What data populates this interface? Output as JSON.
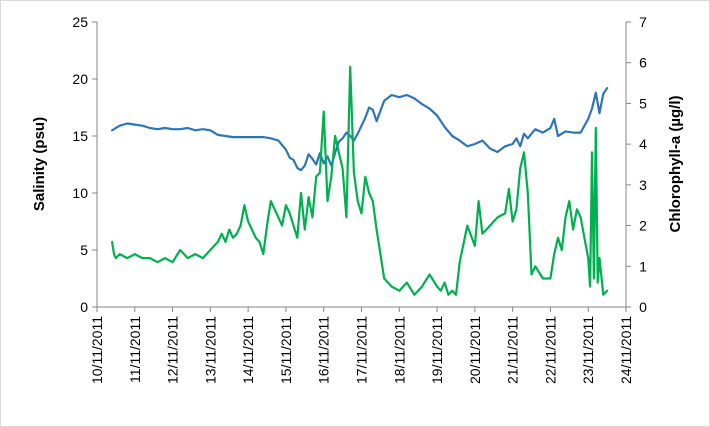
{
  "chart_data": {
    "type": "line",
    "title": "",
    "xlabel": "",
    "ylabel_left": "Salinity (psu)",
    "ylabel_right": "Chlorophyll-a (µg/l)",
    "ylim_left": [
      0,
      25
    ],
    "yticks_left": [
      0,
      5,
      10,
      15,
      20,
      25
    ],
    "ylim_right": [
      0,
      7
    ],
    "yticks_right": [
      0,
      1,
      2,
      3,
      4,
      5,
      6,
      7
    ],
    "xlim": [
      0,
      14
    ],
    "x_tick_labels": [
      "10/11/2011",
      "11/11/2011",
      "12/11/2011",
      "13/11/2011",
      "14/11/2011",
      "15/11/2011",
      "16/11/2011",
      "17/11/2011",
      "18/11/2011",
      "19/11/2011",
      "20/11/2011",
      "21/11/2011",
      "22/11/2011",
      "23/11/2011",
      "24/11/2011"
    ],
    "grid": false,
    "legend": "none",
    "x_unit": "days after 10/11/2011",
    "series": [
      {
        "color": "#2e75b6",
        "axis": "left",
        "x": [
          0.4,
          0.6,
          0.8,
          1.0,
          1.2,
          1.4,
          1.6,
          1.8,
          2.0,
          2.2,
          2.4,
          2.6,
          2.8,
          3.0,
          3.2,
          3.4,
          3.6,
          3.8,
          4.0,
          4.2,
          4.4,
          4.6,
          4.8,
          5.0,
          5.1,
          5.2,
          5.3,
          5.4,
          5.5,
          5.6,
          5.7,
          5.8,
          5.9,
          6.0,
          6.1,
          6.2,
          6.3,
          6.4,
          6.5,
          6.6,
          6.7,
          6.8,
          6.9,
          7.0,
          7.1,
          7.2,
          7.3,
          7.4,
          7.5,
          7.6,
          7.8,
          8.0,
          8.2,
          8.4,
          8.6,
          8.8,
          9.0,
          9.2,
          9.4,
          9.6,
          9.8,
          10.0,
          10.2,
          10.4,
          10.6,
          10.8,
          11.0,
          11.1,
          11.2,
          11.3,
          11.4,
          11.5,
          11.6,
          11.8,
          12.0,
          12.1,
          12.2,
          12.4,
          12.6,
          12.8,
          13.0,
          13.1,
          13.2,
          13.3,
          13.4,
          13.5
        ],
        "y": [
          15.5,
          15.9,
          16.1,
          16.0,
          15.9,
          15.7,
          15.6,
          15.7,
          15.6,
          15.6,
          15.7,
          15.5,
          15.6,
          15.5,
          15.1,
          15.0,
          14.9,
          14.9,
          14.9,
          14.9,
          14.9,
          14.8,
          14.6,
          13.8,
          13.1,
          12.9,
          12.2,
          12.0,
          12.4,
          13.4,
          13.0,
          12.5,
          13.5,
          12.6,
          13.2,
          12.4,
          13.5,
          14.5,
          14.8,
          15.3,
          15.0,
          14.6,
          15.2,
          15.9,
          16.6,
          17.5,
          17.3,
          16.3,
          17.2,
          18.1,
          18.6,
          18.4,
          18.6,
          18.3,
          17.8,
          17.4,
          16.8,
          15.8,
          15.0,
          14.6,
          14.1,
          14.3,
          14.6,
          13.9,
          13.6,
          14.1,
          14.3,
          14.8,
          14.1,
          15.2,
          14.8,
          15.2,
          15.6,
          15.3,
          15.7,
          16.5,
          15.0,
          15.4,
          15.3,
          15.3,
          16.5,
          17.4,
          18.8,
          17.0,
          18.7,
          19.2
        ]
      },
      {
        "color": "#00b050",
        "axis": "right",
        "x": [
          0.4,
          0.45,
          0.5,
          0.6,
          0.8,
          1.0,
          1.2,
          1.4,
          1.6,
          1.8,
          2.0,
          2.2,
          2.4,
          2.6,
          2.8,
          3.0,
          3.1,
          3.2,
          3.3,
          3.4,
          3.5,
          3.6,
          3.7,
          3.8,
          3.9,
          4.0,
          4.1,
          4.2,
          4.3,
          4.4,
          4.5,
          4.6,
          4.7,
          4.8,
          4.9,
          5.0,
          5.1,
          5.2,
          5.3,
          5.4,
          5.5,
          5.6,
          5.7,
          5.8,
          5.9,
          6.0,
          6.1,
          6.2,
          6.3,
          6.4,
          6.5,
          6.6,
          6.7,
          6.8,
          6.9,
          7.0,
          7.1,
          7.2,
          7.3,
          7.4,
          7.6,
          7.8,
          8.0,
          8.2,
          8.4,
          8.6,
          8.8,
          9.0,
          9.1,
          9.2,
          9.3,
          9.4,
          9.5,
          9.6,
          9.8,
          10.0,
          10.1,
          10.2,
          10.4,
          10.6,
          10.8,
          10.9,
          11.0,
          11.1,
          11.2,
          11.3,
          11.4,
          11.5,
          11.6,
          11.8,
          12.0,
          12.1,
          12.2,
          12.3,
          12.4,
          12.5,
          12.6,
          12.7,
          12.8,
          12.9,
          13.0,
          13.05,
          13.1,
          13.15,
          13.2,
          13.25,
          13.3,
          13.4,
          13.5
        ],
        "y": [
          1.6,
          1.3,
          1.2,
          1.3,
          1.2,
          1.3,
          1.2,
          1.2,
          1.1,
          1.2,
          1.1,
          1.4,
          1.2,
          1.3,
          1.2,
          1.4,
          1.5,
          1.6,
          1.8,
          1.6,
          1.9,
          1.7,
          1.8,
          2.0,
          2.5,
          2.1,
          1.9,
          1.7,
          1.6,
          1.3,
          2.0,
          2.6,
          2.4,
          2.2,
          2.0,
          2.5,
          2.3,
          2.0,
          1.7,
          2.8,
          1.9,
          2.7,
          2.2,
          3.2,
          3.3,
          4.8,
          2.6,
          3.2,
          4.2,
          3.8,
          3.4,
          2.2,
          5.9,
          3.3,
          2.6,
          2.3,
          3.2,
          2.8,
          2.6,
          1.9,
          0.7,
          0.5,
          0.4,
          0.6,
          0.3,
          0.5,
          0.8,
          0.5,
          0.4,
          0.6,
          0.3,
          0.4,
          0.3,
          1.1,
          2.0,
          1.5,
          2.6,
          1.8,
          2.0,
          2.2,
          2.3,
          2.9,
          2.1,
          2.4,
          3.4,
          3.8,
          2.8,
          0.8,
          1.0,
          0.7,
          0.7,
          1.3,
          1.7,
          1.4,
          2.2,
          2.6,
          1.9,
          2.4,
          2.2,
          1.7,
          1.2,
          0.5,
          3.8,
          0.7,
          4.4,
          0.6,
          1.2,
          0.3,
          0.4
        ]
      }
    ]
  }
}
